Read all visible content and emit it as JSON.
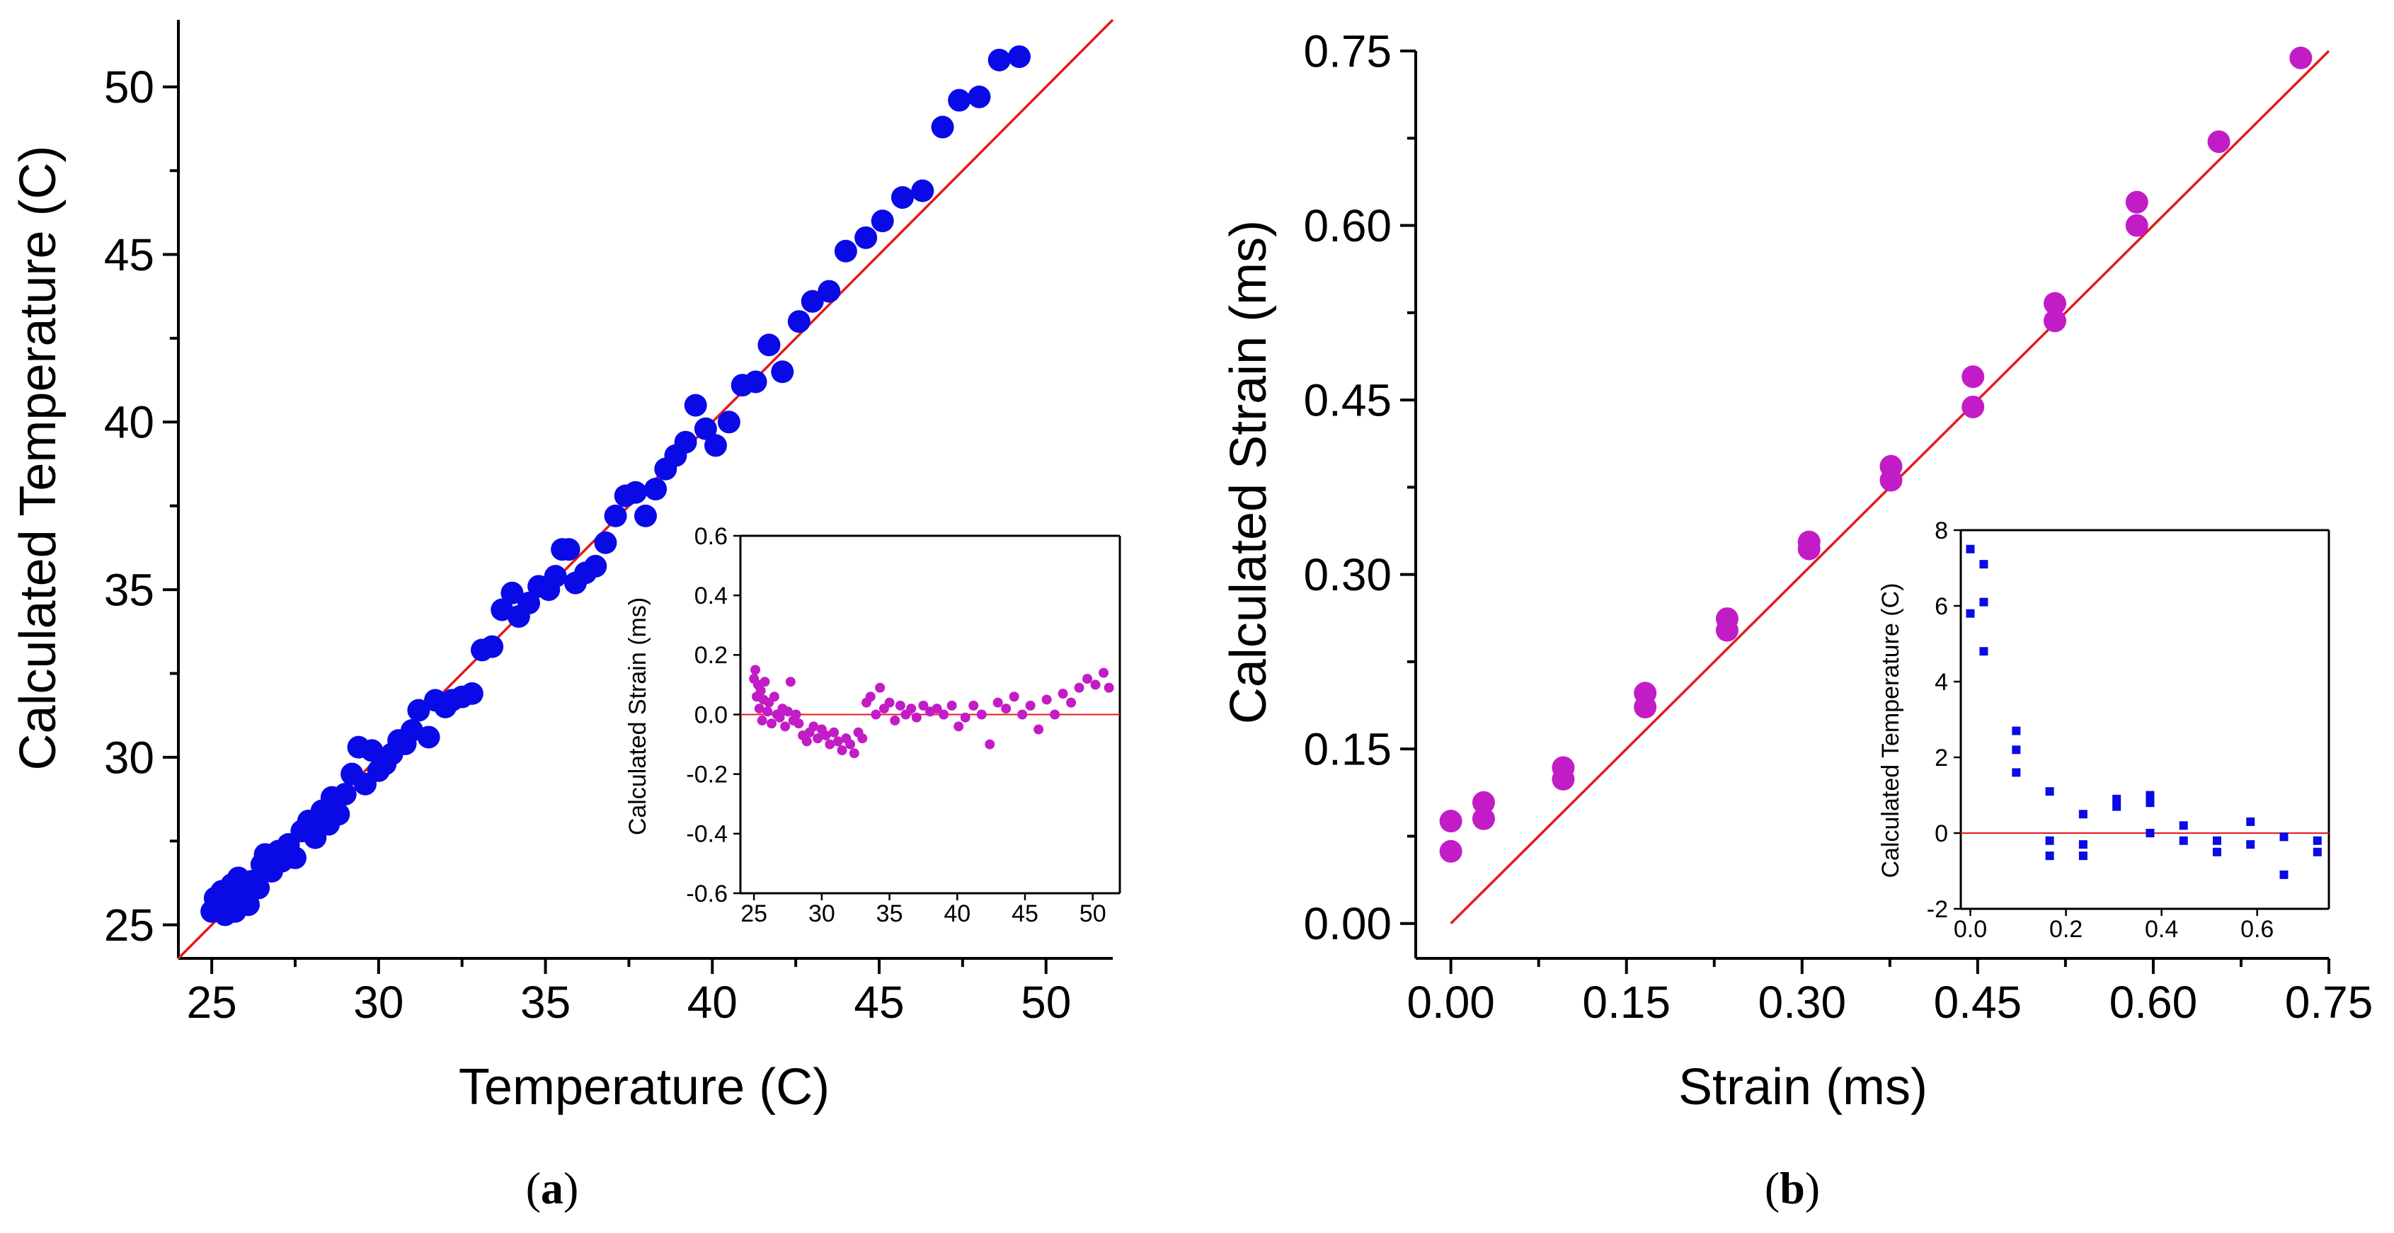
{
  "panels": [
    {
      "caption_open": "(",
      "caption_letter": "a",
      "caption_close": ")",
      "chart_data": {
        "type": "scatter",
        "xlabel": "Temperature (C)",
        "ylabel": "Calculated Temperature (C)",
        "xlim": [
          24,
          52
        ],
        "ylim": [
          24,
          52
        ],
        "xticks": [
          25,
          30,
          35,
          40,
          45,
          50
        ],
        "yticks": [
          25,
          30,
          35,
          40,
          45,
          50
        ],
        "marker_color": "#0a0ae6",
        "fit_color": "#e41a1c",
        "fit_line": [
          [
            24,
            24
          ],
          [
            52,
            52
          ]
        ],
        "points": [
          [
            25.0,
            25.4
          ],
          [
            25.1,
            25.8
          ],
          [
            25.2,
            25.5
          ],
          [
            25.3,
            26.0
          ],
          [
            25.4,
            25.3
          ],
          [
            25.5,
            25.7
          ],
          [
            25.6,
            26.2
          ],
          [
            25.7,
            25.4
          ],
          [
            25.8,
            26.4
          ],
          [
            25.9,
            25.8
          ],
          [
            26.0,
            26.0
          ],
          [
            26.1,
            25.6
          ],
          [
            26.2,
            26.3
          ],
          [
            26.4,
            26.1
          ],
          [
            26.5,
            26.8
          ],
          [
            26.6,
            27.1
          ],
          [
            26.8,
            26.6
          ],
          [
            27.0,
            27.2
          ],
          [
            27.1,
            26.9
          ],
          [
            27.3,
            27.4
          ],
          [
            27.5,
            27.0
          ],
          [
            27.7,
            27.8
          ],
          [
            27.9,
            28.1
          ],
          [
            28.1,
            27.6
          ],
          [
            28.3,
            28.4
          ],
          [
            28.5,
            28.0
          ],
          [
            28.6,
            28.8
          ],
          [
            28.8,
            28.3
          ],
          [
            29.0,
            28.9
          ],
          [
            29.2,
            29.5
          ],
          [
            29.4,
            30.3
          ],
          [
            29.6,
            29.2
          ],
          [
            29.8,
            30.2
          ],
          [
            30.0,
            29.6
          ],
          [
            30.2,
            29.8
          ],
          [
            30.4,
            30.1
          ],
          [
            30.6,
            30.5
          ],
          [
            30.8,
            30.4
          ],
          [
            31.0,
            30.8
          ],
          [
            31.2,
            31.4
          ],
          [
            31.5,
            30.6
          ],
          [
            31.7,
            31.7
          ],
          [
            32.0,
            31.5
          ],
          [
            32.2,
            31.7
          ],
          [
            32.5,
            31.8
          ],
          [
            32.8,
            31.9
          ],
          [
            33.1,
            33.2
          ],
          [
            33.4,
            33.3
          ],
          [
            33.7,
            34.4
          ],
          [
            34.0,
            34.9
          ],
          [
            34.2,
            34.2
          ],
          [
            34.5,
            34.6
          ],
          [
            34.8,
            35.1
          ],
          [
            35.1,
            35.0
          ],
          [
            35.3,
            35.4
          ],
          [
            35.5,
            36.2
          ],
          [
            35.7,
            36.2
          ],
          [
            35.9,
            35.2
          ],
          [
            36.2,
            35.5
          ],
          [
            36.5,
            35.7
          ],
          [
            36.8,
            36.4
          ],
          [
            37.1,
            37.2
          ],
          [
            37.4,
            37.8
          ],
          [
            37.7,
            37.9
          ],
          [
            38.0,
            37.2
          ],
          [
            38.3,
            38.0
          ],
          [
            38.6,
            38.6
          ],
          [
            38.9,
            39.0
          ],
          [
            39.2,
            39.4
          ],
          [
            39.5,
            40.5
          ],
          [
            39.8,
            39.8
          ],
          [
            40.1,
            39.3
          ],
          [
            40.5,
            40.0
          ],
          [
            40.9,
            41.1
          ],
          [
            41.3,
            41.2
          ],
          [
            41.7,
            42.3
          ],
          [
            42.1,
            41.5
          ],
          [
            42.6,
            43.0
          ],
          [
            43.0,
            43.6
          ],
          [
            43.5,
            43.9
          ],
          [
            44.0,
            45.1
          ],
          [
            44.6,
            45.5
          ],
          [
            45.1,
            46.0
          ],
          [
            45.7,
            46.7
          ],
          [
            46.3,
            46.9
          ],
          [
            46.9,
            48.8
          ],
          [
            47.4,
            49.6
          ],
          [
            48.0,
            49.7
          ],
          [
            48.6,
            50.8
          ],
          [
            49.2,
            50.9
          ]
        ]
      },
      "inset": {
        "chart_data": {
          "type": "scatter",
          "ylabel": "Calculated Strain (ms)",
          "xlim": [
            24,
            52
          ],
          "ylim": [
            -0.6,
            0.6
          ],
          "xticks": [
            25,
            30,
            35,
            40,
            45,
            50
          ],
          "yticks": [
            "0.6",
            "0.4",
            "0.2",
            "0.0",
            "-0.2",
            "-0.4",
            "-0.6"
          ],
          "marker_color": "#c21cc6",
          "zero_line_color": "#e41a1c",
          "points": [
            [
              25.0,
              0.12
            ],
            [
              25.1,
              0.15
            ],
            [
              25.2,
              0.06
            ],
            [
              25.3,
              0.1
            ],
            [
              25.4,
              0.02
            ],
            [
              25.5,
              0.08
            ],
            [
              25.6,
              -0.02
            ],
            [
              25.7,
              0.05
            ],
            [
              25.8,
              0.11
            ],
            [
              26.0,
              0.01
            ],
            [
              26.1,
              0.04
            ],
            [
              26.3,
              -0.03
            ],
            [
              26.5,
              0.06
            ],
            [
              26.7,
              0.0
            ],
            [
              26.9,
              -0.01
            ],
            [
              27.1,
              0.02
            ],
            [
              27.3,
              -0.04
            ],
            [
              27.5,
              0.01
            ],
            [
              27.7,
              0.11
            ],
            [
              27.9,
              -0.02
            ],
            [
              28.1,
              0.0
            ],
            [
              28.3,
              -0.03
            ],
            [
              28.6,
              -0.07
            ],
            [
              28.9,
              -0.09
            ],
            [
              29.1,
              -0.06
            ],
            [
              29.4,
              -0.04
            ],
            [
              29.7,
              -0.08
            ],
            [
              30.0,
              -0.05
            ],
            [
              30.3,
              -0.07
            ],
            [
              30.6,
              -0.1
            ],
            [
              30.9,
              -0.06
            ],
            [
              31.2,
              -0.09
            ],
            [
              31.5,
              -0.12
            ],
            [
              31.8,
              -0.08
            ],
            [
              32.1,
              -0.1
            ],
            [
              32.4,
              -0.13
            ],
            [
              32.7,
              -0.06
            ],
            [
              33.0,
              -0.08
            ],
            [
              33.3,
              0.04
            ],
            [
              33.6,
              0.06
            ],
            [
              34.0,
              0.0
            ],
            [
              34.3,
              0.09
            ],
            [
              34.6,
              0.02
            ],
            [
              35.0,
              0.04
            ],
            [
              35.4,
              -0.02
            ],
            [
              35.8,
              0.03
            ],
            [
              36.2,
              0.0
            ],
            [
              36.6,
              0.02
            ],
            [
              37.0,
              -0.01
            ],
            [
              37.5,
              0.03
            ],
            [
              38.0,
              0.01
            ],
            [
              38.5,
              0.02
            ],
            [
              39.0,
              0.0
            ],
            [
              39.6,
              0.03
            ],
            [
              40.1,
              -0.04
            ],
            [
              40.6,
              -0.01
            ],
            [
              41.2,
              0.03
            ],
            [
              41.8,
              0.0
            ],
            [
              42.4,
              -0.1
            ],
            [
              43.0,
              0.04
            ],
            [
              43.6,
              0.02
            ],
            [
              44.2,
              0.06
            ],
            [
              44.8,
              0.0
            ],
            [
              45.4,
              0.03
            ],
            [
              46.0,
              -0.05
            ],
            [
              46.6,
              0.05
            ],
            [
              47.2,
              0.0
            ],
            [
              47.8,
              0.07
            ],
            [
              48.4,
              0.04
            ],
            [
              49.0,
              0.09
            ],
            [
              49.6,
              0.12
            ],
            [
              50.2,
              0.1
            ],
            [
              50.8,
              0.14
            ],
            [
              51.2,
              0.09
            ]
          ]
        }
      }
    },
    {
      "caption_open": "(",
      "caption_letter": "b",
      "caption_close": ")",
      "chart_data": {
        "type": "scatter",
        "xlabel": "Strain (ms)",
        "ylabel": "Calculated Strain (ms)",
        "xlim": [
          -0.03,
          0.75
        ],
        "ylim": [
          -0.03,
          0.75
        ],
        "xticks": [
          "0.00",
          "0.15",
          "0.30",
          "0.45",
          "0.60",
          "0.75"
        ],
        "yticks": [
          "0.00",
          "0.15",
          "0.30",
          "0.45",
          "0.60",
          "0.75"
        ],
        "marker_color": "#c21cc6",
        "fit_color": "#e41a1c",
        "fit_line": [
          [
            0,
            0
          ],
          [
            0.75,
            0.75
          ]
        ],
        "points": [
          [
            0.0,
            0.088
          ],
          [
            0.0,
            0.062
          ],
          [
            0.028,
            0.104
          ],
          [
            0.028,
            0.09
          ],
          [
            0.096,
            0.134
          ],
          [
            0.096,
            0.124
          ],
          [
            0.166,
            0.198
          ],
          [
            0.166,
            0.186
          ],
          [
            0.236,
            0.262
          ],
          [
            0.236,
            0.252
          ],
          [
            0.306,
            0.328
          ],
          [
            0.306,
            0.322
          ],
          [
            0.376,
            0.393
          ],
          [
            0.376,
            0.381
          ],
          [
            0.446,
            0.47
          ],
          [
            0.446,
            0.444
          ],
          [
            0.516,
            0.533
          ],
          [
            0.516,
            0.518
          ],
          [
            0.586,
            0.62
          ],
          [
            0.586,
            0.6
          ],
          [
            0.656,
            0.672
          ],
          [
            0.726,
            0.744
          ]
        ]
      },
      "inset": {
        "chart_data": {
          "type": "scatter",
          "ylabel": "Calculated Temperature (C)",
          "xlim": [
            -0.02,
            0.75
          ],
          "ylim": [
            -2,
            8
          ],
          "xticks": [
            "0.0",
            "0.2",
            "0.4",
            "0.6"
          ],
          "yticks": [
            "8",
            "6",
            "4",
            "2",
            "0",
            "-2"
          ],
          "marker_color": "#0a0ae6",
          "zero_line_color": "#e41a1c",
          "points": [
            [
              0.0,
              7.5
            ],
            [
              0.0,
              5.8
            ],
            [
              0.028,
              7.1
            ],
            [
              0.028,
              6.1
            ],
            [
              0.028,
              4.8
            ],
            [
              0.096,
              2.7
            ],
            [
              0.096,
              2.2
            ],
            [
              0.096,
              1.6
            ],
            [
              0.166,
              1.1
            ],
            [
              0.166,
              -0.2
            ],
            [
              0.166,
              -0.6
            ],
            [
              0.236,
              0.5
            ],
            [
              0.236,
              -0.3
            ],
            [
              0.236,
              -0.6
            ],
            [
              0.306,
              0.9
            ],
            [
              0.306,
              0.7
            ],
            [
              0.376,
              1.0
            ],
            [
              0.376,
              0.8
            ],
            [
              0.376,
              0.0
            ],
            [
              0.446,
              0.2
            ],
            [
              0.446,
              -0.2
            ],
            [
              0.516,
              -0.2
            ],
            [
              0.516,
              -0.5
            ],
            [
              0.586,
              0.3
            ],
            [
              0.586,
              -0.3
            ],
            [
              0.656,
              -0.1
            ],
            [
              0.656,
              -1.1
            ],
            [
              0.726,
              -0.2
            ],
            [
              0.726,
              -0.5
            ]
          ]
        }
      }
    }
  ]
}
